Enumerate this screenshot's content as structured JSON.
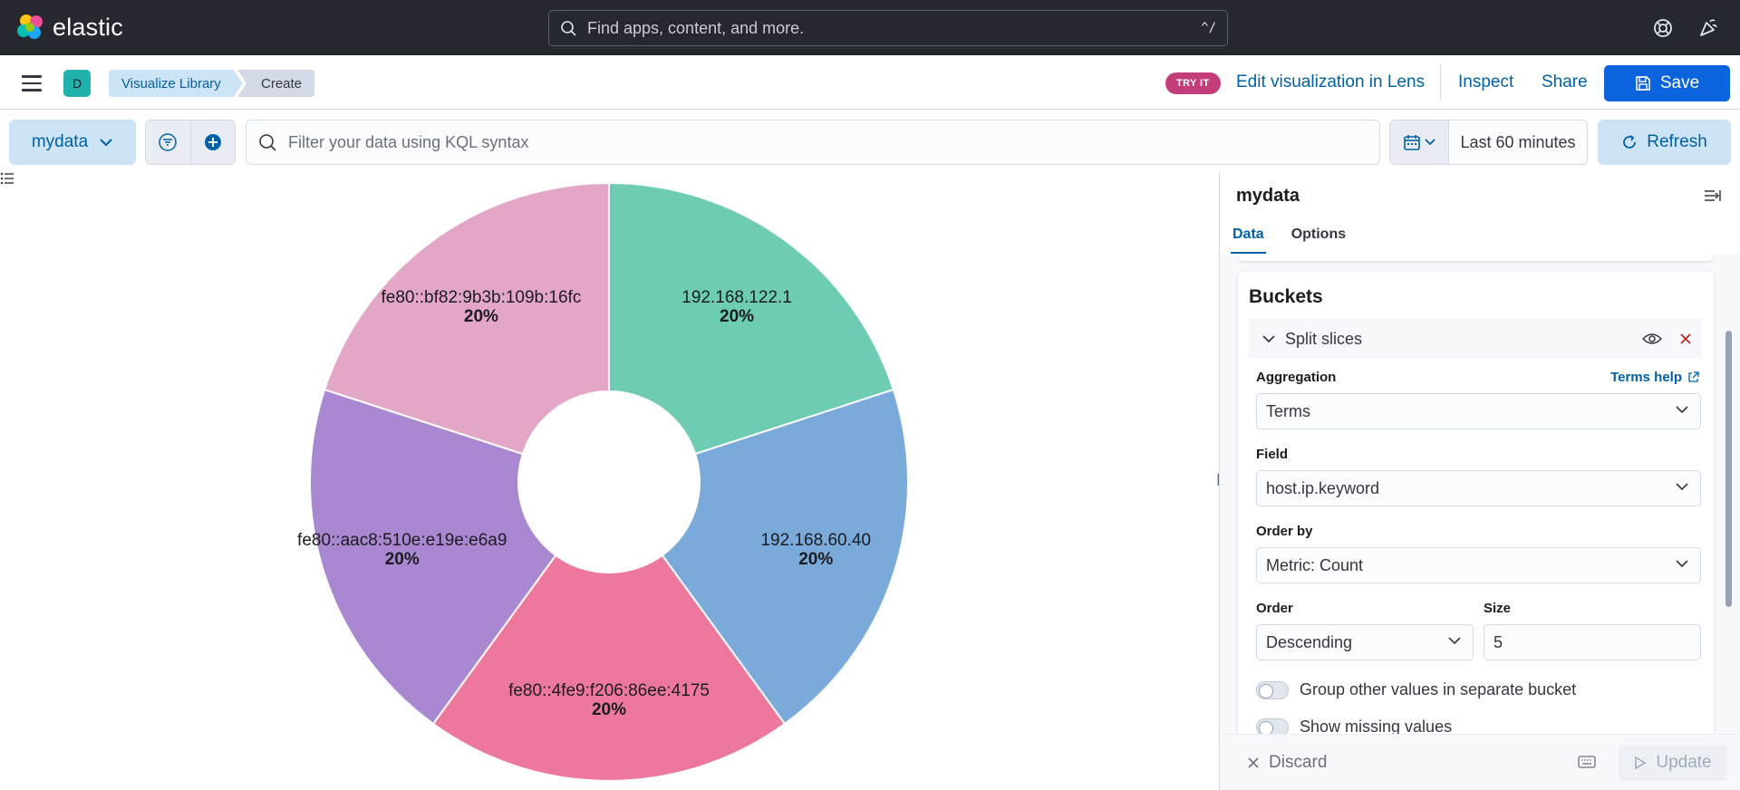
{
  "header": {
    "brand": "elastic",
    "search_placeholder": "Find apps, content, and more.",
    "search_shortcut": "^/",
    "icons": [
      "help-icon",
      "newsfeed-icon"
    ]
  },
  "nav": {
    "space_initial": "D",
    "breadcrumbs": [
      "Visualize Library",
      "Create"
    ],
    "try_it_badge": "TRY IT",
    "edit_lens": "Edit visualization in Lens",
    "inspect": "Inspect",
    "share": "Share",
    "save": "Save"
  },
  "query": {
    "data_view": "mydata",
    "kql_placeholder": "Filter your data using KQL syntax",
    "time_range": "Last 60 minutes",
    "refresh": "Refresh"
  },
  "chart_data": {
    "type": "pie",
    "donut": true,
    "slices": [
      {
        "label": "192.168.122.1",
        "value": 20,
        "pct_label": "20%",
        "color": "#6dccb1"
      },
      {
        "label": "192.168.60.40",
        "value": 20,
        "pct_label": "20%",
        "color": "#79aad9"
      },
      {
        "label": "fe80::4fe9:f206:86ee:4175",
        "value": 20,
        "pct_label": "20%",
        "color": "#ee789d"
      },
      {
        "label": "fe80::aac8:510e:e19e:e6a9",
        "value": 20,
        "pct_label": "20%",
        "color": "#a987d1"
      },
      {
        "label": "fe80::bf82:9b3b:109b:16fc",
        "value": 20,
        "pct_label": "20%",
        "color": "#e4a6c7"
      }
    ]
  },
  "panel": {
    "title": "mydata",
    "tabs": [
      "Data",
      "Options"
    ],
    "buckets_title": "Buckets",
    "agg_name": "Split slices",
    "aggregation_label": "Aggregation",
    "terms_help": "Terms help",
    "aggregation_value": "Terms",
    "field_label": "Field",
    "field_value": "host.ip.keyword",
    "order_by_label": "Order by",
    "order_by_value": "Metric: Count",
    "order_label": "Order",
    "order_value": "Descending",
    "size_label": "Size",
    "size_value": "5",
    "group_other": "Group other values in separate bucket",
    "show_missing": "Show missing values",
    "discard": "Discard",
    "update": "Update"
  }
}
